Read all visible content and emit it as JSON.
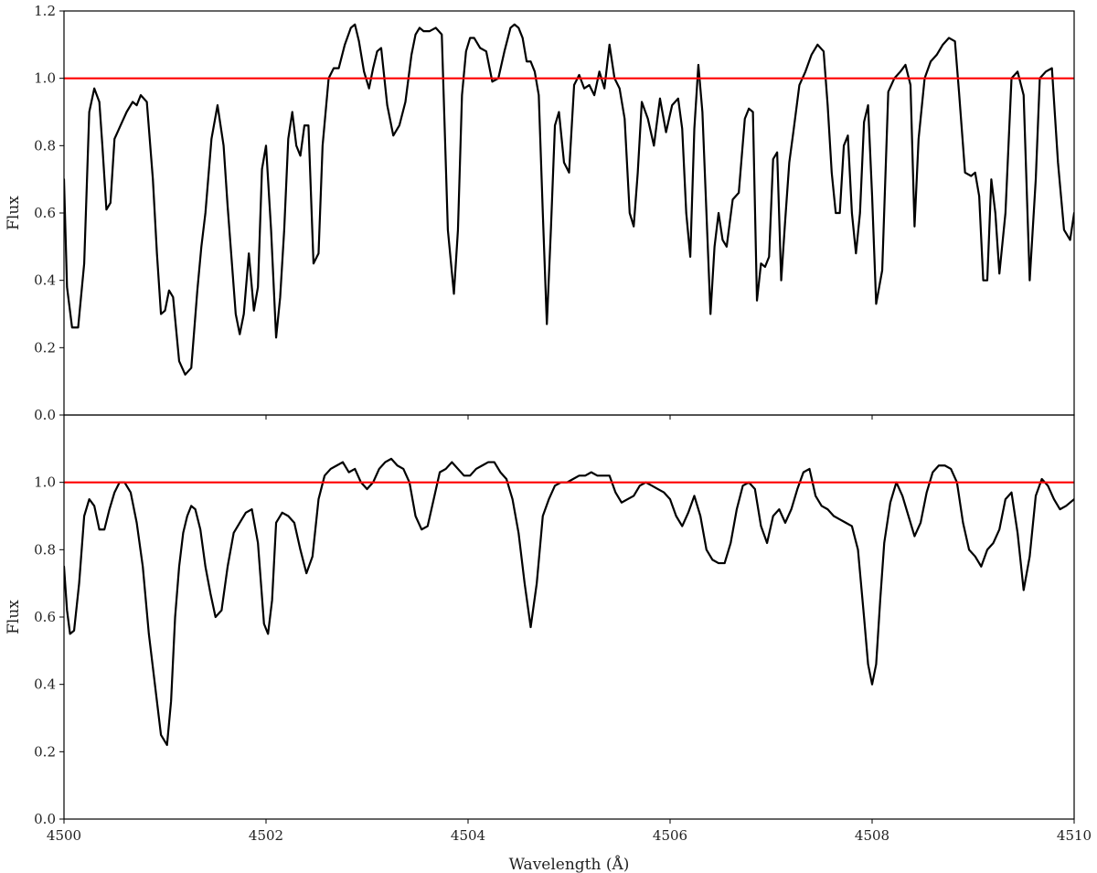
{
  "chart_data": [
    {
      "type": "line",
      "panel": "top",
      "xlabel": "",
      "ylabel": "Flux",
      "xlim": [
        4500,
        4510
      ],
      "ylim": [
        0.0,
        1.2
      ],
      "yticks": [
        0.0,
        0.2,
        0.4,
        0.6,
        0.8,
        1.0,
        1.2
      ],
      "ytick_labels": [
        "0.0",
        "0.2",
        "0.4",
        "0.6",
        "0.8",
        "1.0",
        "1.2"
      ],
      "xticks": [
        4500,
        4502,
        4504,
        4506,
        4508,
        4510
      ],
      "show_xtick_labels": false,
      "grid": false,
      "reference_line": {
        "y": 1.0,
        "color": "#ff0000"
      },
      "series": [
        {
          "color": "#000000",
          "x": [
            4500.0,
            4500.03,
            4500.08,
            4500.14,
            4500.2,
            4500.25,
            4500.3,
            4500.35,
            4500.38,
            4500.42,
            4500.46,
            4500.5,
            4500.56,
            4500.62,
            4500.68,
            4500.72,
            4500.76,
            4500.82,
            4500.88,
            4500.92,
            4500.96,
            4501.0,
            4501.04,
            4501.08,
            4501.14,
            4501.2,
            4501.26,
            4501.32,
            4501.36,
            4501.4,
            4501.46,
            4501.52,
            4501.58,
            4501.62,
            4501.66,
            4501.7,
            4501.74,
            4501.78,
            4501.83,
            4501.88,
            4501.92,
            4501.96,
            4502.0,
            4502.05,
            4502.1,
            4502.14,
            4502.18,
            4502.22,
            4502.26,
            4502.3,
            4502.34,
            4502.38,
            4502.42,
            4502.47,
            4502.52,
            4502.56,
            4502.62,
            4502.67,
            4502.72,
            4502.78,
            4502.84,
            4502.88,
            4502.92,
            4502.97,
            4503.02,
            4503.06,
            4503.1,
            4503.14,
            4503.2,
            4503.26,
            4503.32,
            4503.38,
            4503.44,
            4503.48,
            4503.52,
            4503.56,
            4503.62,
            4503.68,
            4503.74,
            4503.8,
            4503.86,
            4503.9,
            4503.94,
            4503.98,
            4504.02,
            4504.06,
            4504.12,
            4504.18,
            4504.24,
            4504.3,
            4504.36,
            4504.42,
            4504.46,
            4504.5,
            4504.54,
            4504.58,
            4504.62,
            4504.66,
            4504.7,
            4504.74,
            4504.78,
            4504.82,
            4504.86,
            4504.9,
            4504.95,
            4505.0,
            4505.05,
            4505.1,
            4505.15,
            4505.2,
            4505.25,
            4505.3,
            4505.35,
            4505.4,
            4505.45,
            4505.5,
            4505.55,
            4505.6,
            4505.64,
            4505.68,
            4505.72,
            4505.78,
            4505.84,
            4505.9,
            4505.96,
            4506.02,
            4506.08,
            4506.12,
            4506.16,
            4506.2,
            4506.24,
            4506.28,
            4506.32,
            4506.36,
            4506.4,
            4506.44,
            4506.48,
            4506.52,
            4506.56,
            4506.62,
            4506.68,
            4506.74,
            4506.78,
            4506.82,
            4506.86,
            4506.9,
            4506.94,
            4506.98,
            4507.02,
            4507.06,
            4507.1,
            4507.14,
            4507.18,
            4507.22,
            4507.28,
            4507.34,
            4507.4,
            4507.46,
            4507.52,
            4507.56,
            4507.6,
            4507.64,
            4507.68,
            4507.72,
            4507.76,
            4507.8,
            4507.84,
            4507.88,
            4507.92,
            4507.96,
            4508.0,
            4508.04,
            4508.1,
            4508.16,
            4508.22,
            4508.28,
            4508.33,
            4508.38,
            4508.42,
            4508.46,
            4508.52,
            4508.58,
            4508.64,
            4508.7,
            4508.76,
            4508.82,
            4508.86,
            4508.92,
            4508.98,
            4509.02,
            4509.06,
            4509.1,
            4509.14,
            4509.18,
            4509.22,
            4509.26,
            4509.32,
            4509.38,
            4509.44,
            4509.5,
            4509.56,
            4509.62,
            4509.66,
            4509.72,
            4509.78,
            4509.84,
            4509.9,
            4509.96,
            4510.0
          ],
          "y": [
            0.7,
            0.38,
            0.26,
            0.26,
            0.45,
            0.9,
            0.97,
            0.93,
            0.8,
            0.61,
            0.63,
            0.82,
            0.86,
            0.9,
            0.93,
            0.92,
            0.95,
            0.93,
            0.7,
            0.48,
            0.3,
            0.31,
            0.37,
            0.35,
            0.16,
            0.12,
            0.14,
            0.37,
            0.5,
            0.6,
            0.82,
            0.92,
            0.8,
            0.62,
            0.46,
            0.3,
            0.24,
            0.3,
            0.48,
            0.31,
            0.38,
            0.73,
            0.8,
            0.55,
            0.23,
            0.35,
            0.55,
            0.82,
            0.9,
            0.8,
            0.77,
            0.86,
            0.86,
            0.45,
            0.48,
            0.8,
            1.0,
            1.03,
            1.03,
            1.1,
            1.15,
            1.16,
            1.11,
            1.02,
            0.97,
            1.03,
            1.08,
            1.09,
            0.92,
            0.83,
            0.86,
            0.93,
            1.07,
            1.13,
            1.15,
            1.14,
            1.14,
            1.15,
            1.13,
            0.55,
            0.36,
            0.55,
            0.95,
            1.08,
            1.12,
            1.12,
            1.09,
            1.08,
            0.99,
            1.0,
            1.08,
            1.15,
            1.16,
            1.15,
            1.12,
            1.05,
            1.05,
            1.02,
            0.95,
            0.6,
            0.27,
            0.55,
            0.86,
            0.9,
            0.75,
            0.72,
            0.98,
            1.01,
            0.97,
            0.98,
            0.95,
            1.02,
            0.97,
            1.1,
            1.0,
            0.97,
            0.88,
            0.6,
            0.56,
            0.72,
            0.93,
            0.88,
            0.8,
            0.94,
            0.84,
            0.92,
            0.94,
            0.85,
            0.6,
            0.47,
            0.85,
            1.04,
            0.9,
            0.6,
            0.3,
            0.5,
            0.6,
            0.52,
            0.5,
            0.64,
            0.66,
            0.88,
            0.91,
            0.9,
            0.34,
            0.45,
            0.44,
            0.47,
            0.76,
            0.78,
            0.4,
            0.58,
            0.75,
            0.84,
            0.98,
            1.02,
            1.07,
            1.1,
            1.08,
            0.92,
            0.72,
            0.6,
            0.6,
            0.8,
            0.83,
            0.6,
            0.48,
            0.6,
            0.87,
            0.92,
            0.65,
            0.33,
            0.43,
            0.96,
            1.0,
            1.02,
            1.04,
            0.98,
            0.56,
            0.82,
            1.0,
            1.05,
            1.07,
            1.1,
            1.12,
            1.11,
            0.96,
            0.72,
            0.71,
            0.72,
            0.65,
            0.4,
            0.4,
            0.7,
            0.6,
            0.42,
            0.6,
            1.0,
            1.02,
            0.95,
            0.4,
            0.7,
            1.0,
            1.02,
            1.03,
            0.75,
            0.55,
            0.52,
            0.6
          ]
        }
      ]
    },
    {
      "type": "line",
      "panel": "bottom",
      "xlabel": "Wavelength (Å)",
      "ylabel": "Flux",
      "xlim": [
        4500,
        4510
      ],
      "ylim": [
        0.0,
        1.2
      ],
      "yticks": [
        0.0,
        0.2,
        0.4,
        0.6,
        0.8,
        1.0
      ],
      "ytick_labels": [
        "0.0",
        "0.2",
        "0.4",
        "0.6",
        "0.8",
        "1.0"
      ],
      "xticks": [
        4500,
        4502,
        4504,
        4506,
        4508,
        4510
      ],
      "xtick_labels": [
        "4500",
        "4502",
        "4504",
        "4506",
        "4508",
        "4510"
      ],
      "grid": false,
      "reference_line": {
        "y": 1.0,
        "color": "#ff0000"
      },
      "series": [
        {
          "color": "#000000",
          "x": [
            4500.0,
            4500.03,
            4500.06,
            4500.1,
            4500.15,
            4500.2,
            4500.25,
            4500.3,
            4500.35,
            4500.4,
            4500.45,
            4500.5,
            4500.55,
            4500.6,
            4500.66,
            4500.72,
            4500.78,
            4500.84,
            4500.9,
            4500.96,
            4501.02,
            4501.06,
            4501.1,
            4501.14,
            4501.18,
            4501.22,
            4501.26,
            4501.3,
            4501.35,
            4501.4,
            4501.45,
            4501.5,
            4501.56,
            4501.62,
            4501.68,
            4501.74,
            4501.8,
            4501.86,
            4501.92,
            4501.98,
            4502.02,
            4502.06,
            4502.1,
            4502.16,
            4502.22,
            4502.28,
            4502.34,
            4502.4,
            4502.46,
            4502.52,
            4502.58,
            4502.64,
            4502.7,
            4502.76,
            4502.82,
            4502.88,
            4502.94,
            4503.0,
            4503.06,
            4503.12,
            4503.18,
            4503.24,
            4503.3,
            4503.36,
            4503.42,
            4503.48,
            4503.54,
            4503.6,
            4503.66,
            4503.72,
            4503.78,
            4503.84,
            4503.9,
            4503.96,
            4504.02,
            4504.08,
            4504.14,
            4504.2,
            4504.26,
            4504.32,
            4504.38,
            4504.44,
            4504.5,
            4504.56,
            4504.62,
            4504.68,
            4504.74,
            4504.8,
            4504.86,
            4504.92,
            4504.98,
            4505.04,
            4505.1,
            4505.16,
            4505.22,
            4505.28,
            4505.34,
            4505.4,
            4505.46,
            4505.52,
            4505.58,
            4505.64,
            4505.7,
            4505.76,
            4505.82,
            4505.88,
            4505.94,
            4506.0,
            4506.06,
            4506.12,
            4506.18,
            4506.24,
            4506.3,
            4506.36,
            4506.42,
            4506.48,
            4506.54,
            4506.6,
            4506.66,
            4506.72,
            4506.78,
            4506.84,
            4506.9,
            4506.96,
            4507.02,
            4507.08,
            4507.14,
            4507.2,
            4507.26,
            4507.32,
            4507.38,
            4507.44,
            4507.5,
            4507.56,
            4507.62,
            4507.68,
            4507.74,
            4507.8,
            4507.86,
            4507.92,
            4507.96,
            4508.0,
            4508.04,
            4508.08,
            4508.12,
            4508.18,
            4508.24,
            4508.3,
            4508.36,
            4508.42,
            4508.48,
            4508.54,
            4508.6,
            4508.66,
            4508.72,
            4508.78,
            4508.84,
            4508.9,
            4508.96,
            4509.02,
            4509.08,
            4509.14,
            4509.2,
            4509.26,
            4509.32,
            4509.38,
            4509.44,
            4509.5,
            4509.56,
            4509.62,
            4509.68,
            4509.74,
            4509.8,
            4509.86,
            4509.92,
            4510.0
          ],
          "y": [
            0.75,
            0.62,
            0.55,
            0.56,
            0.7,
            0.9,
            0.95,
            0.93,
            0.86,
            0.86,
            0.92,
            0.97,
            1.0,
            1.0,
            0.97,
            0.88,
            0.75,
            0.55,
            0.4,
            0.25,
            0.22,
            0.35,
            0.6,
            0.75,
            0.85,
            0.9,
            0.93,
            0.92,
            0.86,
            0.75,
            0.67,
            0.6,
            0.62,
            0.75,
            0.85,
            0.88,
            0.91,
            0.92,
            0.82,
            0.58,
            0.55,
            0.65,
            0.88,
            0.91,
            0.9,
            0.88,
            0.8,
            0.73,
            0.78,
            0.95,
            1.02,
            1.04,
            1.05,
            1.06,
            1.03,
            1.04,
            1.0,
            0.98,
            1.0,
            1.04,
            1.06,
            1.07,
            1.05,
            1.04,
            1.0,
            0.9,
            0.86,
            0.87,
            0.95,
            1.03,
            1.04,
            1.06,
            1.04,
            1.02,
            1.02,
            1.04,
            1.05,
            1.06,
            1.06,
            1.03,
            1.01,
            0.95,
            0.85,
            0.7,
            0.57,
            0.7,
            0.9,
            0.95,
            0.99,
            1.0,
            1.0,
            1.01,
            1.02,
            1.02,
            1.03,
            1.02,
            1.02,
            1.02,
            0.97,
            0.94,
            0.95,
            0.96,
            0.99,
            1.0,
            0.99,
            0.98,
            0.97,
            0.95,
            0.9,
            0.87,
            0.91,
            0.96,
            0.9,
            0.8,
            0.77,
            0.76,
            0.76,
            0.82,
            0.92,
            0.99,
            1.0,
            0.98,
            0.87,
            0.82,
            0.9,
            0.92,
            0.88,
            0.92,
            0.98,
            1.03,
            1.04,
            0.96,
            0.93,
            0.92,
            0.9,
            0.89,
            0.88,
            0.87,
            0.8,
            0.6,
            0.46,
            0.4,
            0.46,
            0.65,
            0.82,
            0.94,
            1.0,
            0.96,
            0.9,
            0.84,
            0.88,
            0.97,
            1.03,
            1.05,
            1.05,
            1.04,
            1.0,
            0.88,
            0.8,
            0.78,
            0.75,
            0.8,
            0.82,
            0.86,
            0.95,
            0.97,
            0.85,
            0.68,
            0.78,
            0.96,
            1.01,
            0.99,
            0.95,
            0.92,
            0.93,
            0.95
          ]
        }
      ]
    }
  ]
}
